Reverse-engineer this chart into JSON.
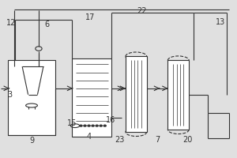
{
  "bg_color": "#e0e0e0",
  "line_color": "#333333",
  "label_fontsize": 7
}
